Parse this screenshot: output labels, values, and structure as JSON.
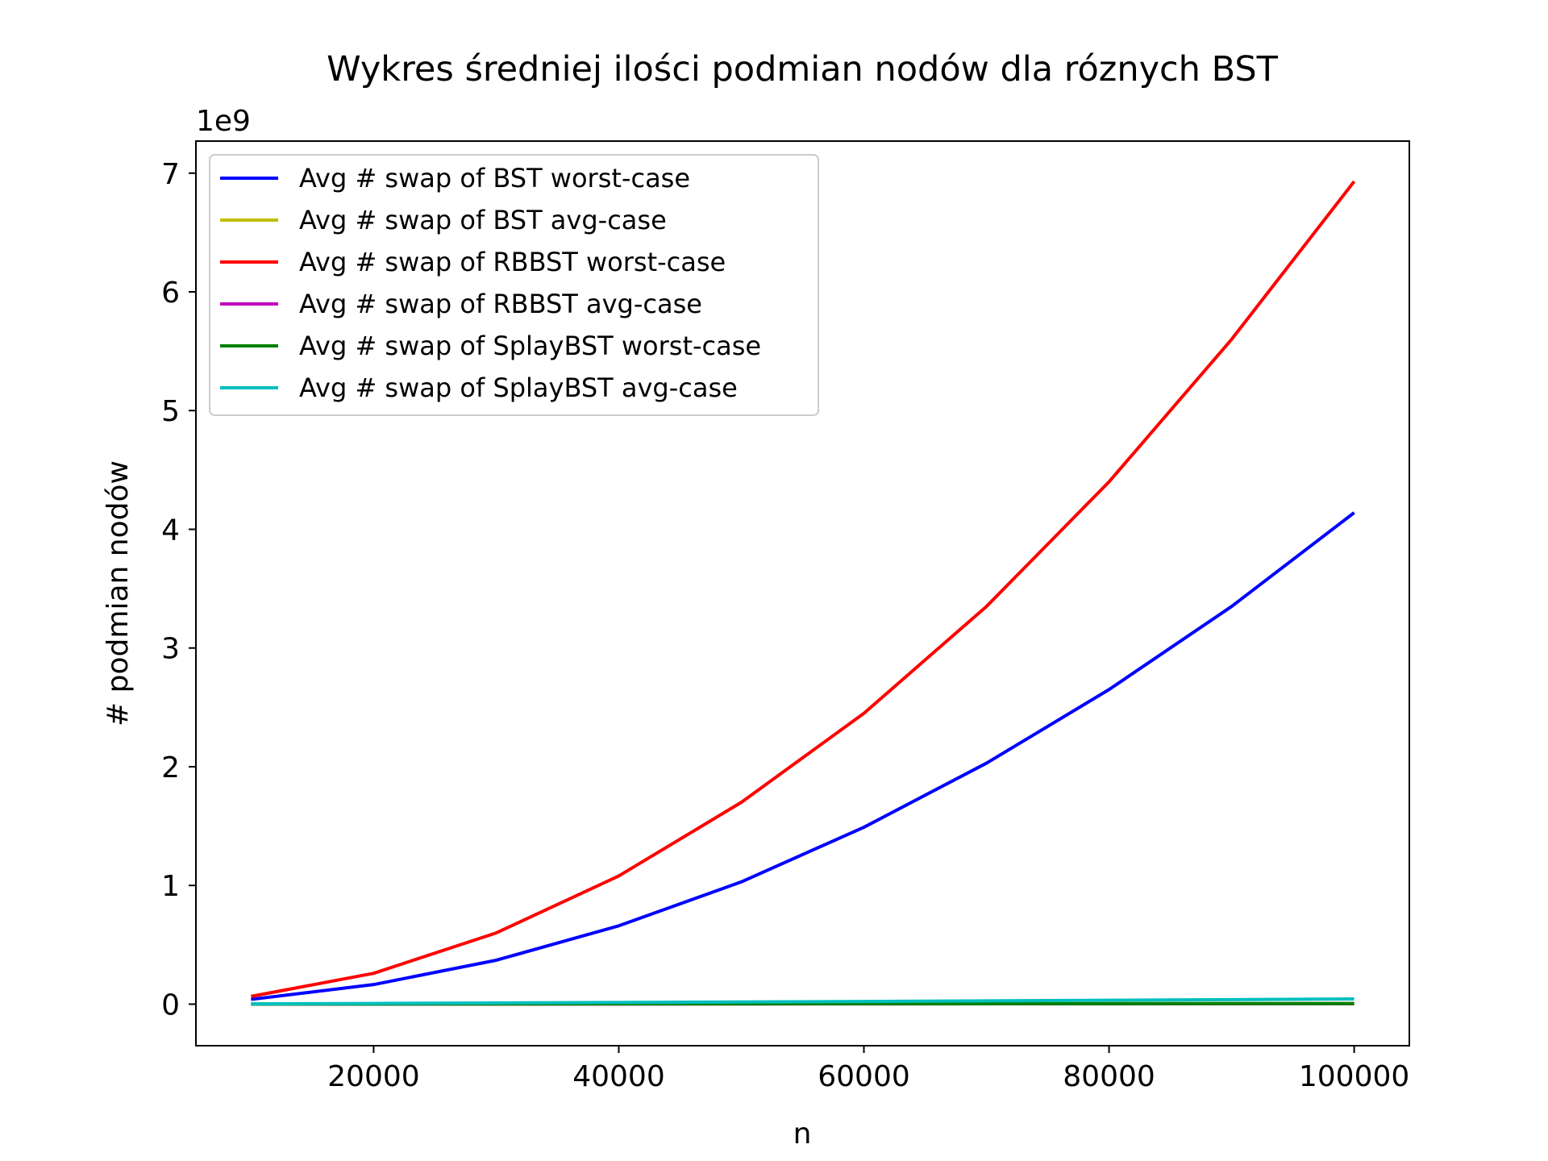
{
  "chart_data": {
    "type": "line",
    "title": "Wykres średniej ilości podmian nodów dla róznych BST",
    "xlabel": "n",
    "ylabel": "# podmian nodów",
    "y_multiplier_label": "1e9",
    "y_multiplier": 1000000000,
    "xlim": [
      5500,
      104500
    ],
    "ylim": [
      -0.35,
      7.27
    ],
    "xticks": [
      20000,
      40000,
      60000,
      80000,
      100000
    ],
    "xtick_labels": [
      "20000",
      "40000",
      "60000",
      "80000",
      "100000"
    ],
    "yticks": [
      0,
      1,
      2,
      3,
      4,
      5,
      6,
      7
    ],
    "ytick_labels": [
      "0",
      "1",
      "2",
      "3",
      "4",
      "5",
      "6",
      "7"
    ],
    "grid": false,
    "legend_position": "upper-left",
    "x": [
      10000,
      20000,
      30000,
      40000,
      50000,
      60000,
      70000,
      80000,
      90000,
      100000
    ],
    "series": [
      {
        "name": "Avg # swap of BST worst-case",
        "color": "#0000ff",
        "values": [
          0.04,
          0.165,
          0.37,
          0.66,
          1.03,
          1.49,
          2.03,
          2.65,
          3.35,
          4.14
        ]
      },
      {
        "name": "Avg # swap of BST avg-case",
        "color": "#bfbf00",
        "values": [
          0.0005,
          0.001,
          0.0015,
          0.002,
          0.0026,
          0.0032,
          0.0038,
          0.0044,
          0.005,
          0.0056
        ]
      },
      {
        "name": "Avg # swap of RBBST worst-case",
        "color": "#ff0000",
        "values": [
          0.065,
          0.26,
          0.6,
          1.08,
          1.7,
          2.45,
          3.35,
          4.4,
          5.6,
          6.93
        ]
      },
      {
        "name": "Avg # swap of RBBST avg-case",
        "color": "#bf00bf",
        "values": [
          0.0004,
          0.0008,
          0.0012,
          0.0016,
          0.002,
          0.0024,
          0.0028,
          0.0032,
          0.0036,
          0.004
        ]
      },
      {
        "name": "Avg # swap of SplayBST worst-case",
        "color": "#008000",
        "values": [
          0.0005,
          0.001,
          0.0015,
          0.002,
          0.0025,
          0.003,
          0.0035,
          0.004,
          0.0045,
          0.005
        ]
      },
      {
        "name": "Avg # swap of SplayBST avg-case",
        "color": "#00bfbf",
        "values": [
          0.002,
          0.006,
          0.01,
          0.014,
          0.018,
          0.023,
          0.028,
          0.033,
          0.038,
          0.044
        ]
      }
    ]
  }
}
